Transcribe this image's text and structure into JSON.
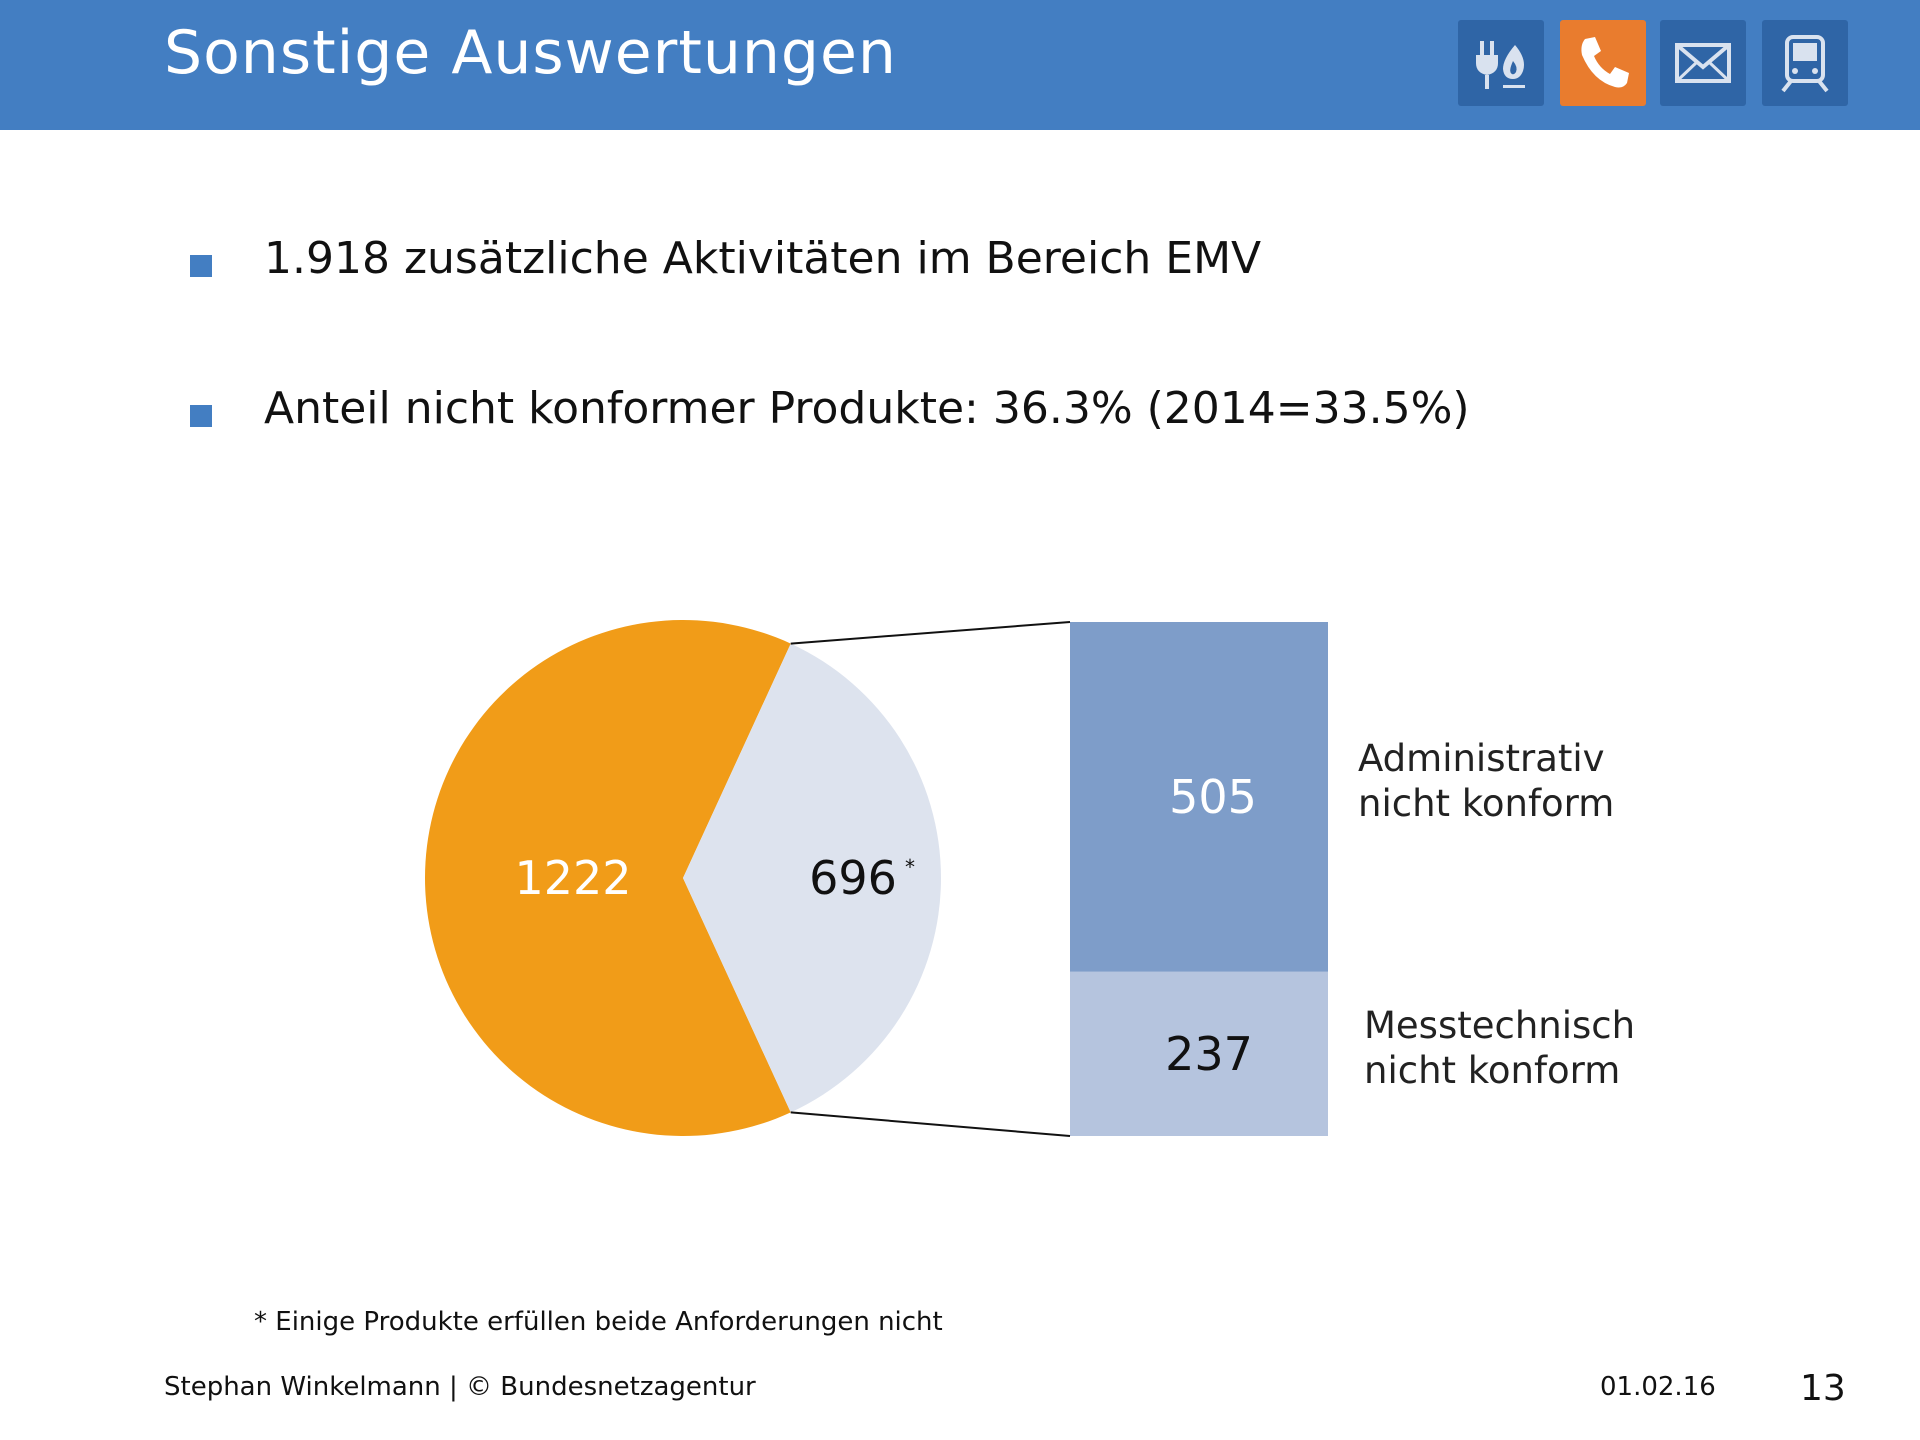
{
  "header": {
    "title": "Sonstige Auswertungen",
    "icons": [
      {
        "name": "energy-icon",
        "active": false
      },
      {
        "name": "phone-icon",
        "active": true
      },
      {
        "name": "mail-icon",
        "active": false
      },
      {
        "name": "train-icon",
        "active": false
      }
    ],
    "colors": {
      "bar": "#437ec2",
      "icon_bg": "#2f65a6",
      "icon_active": "#e97c2e"
    }
  },
  "bullets": [
    "1.918 zusätzliche Aktivitäten im Bereich EMV",
    "Anteil nicht konformer Produkte: 36.3% (2014=33.5%)"
  ],
  "chart_data": {
    "type": "pie",
    "pie": {
      "slices": [
        {
          "label": "1222",
          "value": 1222,
          "color": "#f19c18"
        },
        {
          "label": "696",
          "marker": "*",
          "value": 696,
          "color": "#dde3ee"
        }
      ]
    },
    "breakdown_bar": {
      "of_slice": "696",
      "segments": [
        {
          "value": 505,
          "label": "505",
          "category": [
            "Administrativ",
            "nicht konform"
          ],
          "color": "#7e9dc9"
        },
        {
          "value": 237,
          "label": "237",
          "category": [
            "Messtechnisch",
            "nicht konform"
          ],
          "color": "#b5c4de"
        }
      ]
    }
  },
  "footnote": "* Einige Produkte erfüllen beide Anforderungen nicht",
  "footer": {
    "author": "Stephan Winkelmann | © Bundesnetzagentur",
    "date": "01.02.16",
    "page": "13"
  }
}
